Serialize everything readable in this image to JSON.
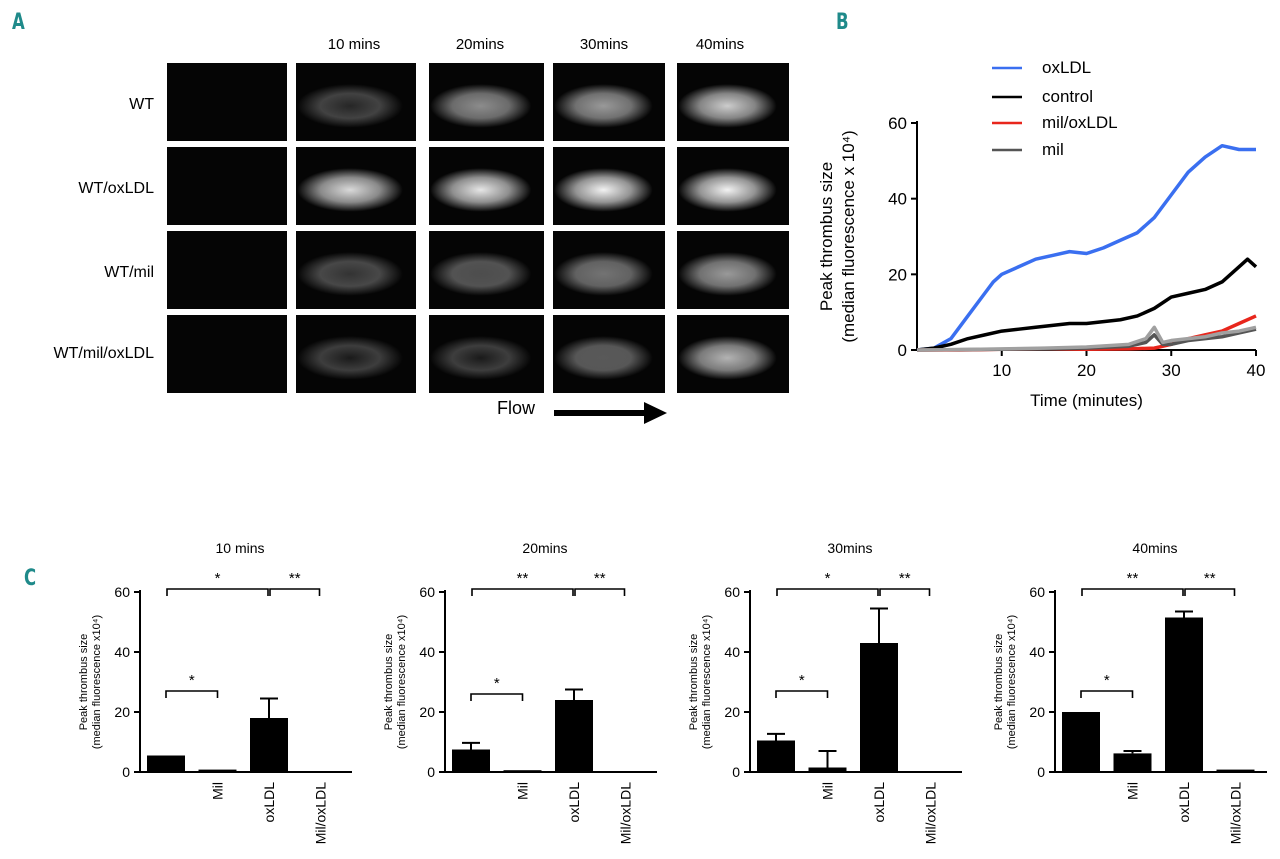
{
  "panels": {
    "a": "A",
    "b": "B",
    "c": "C"
  },
  "micrographs": {
    "time_headers": [
      "10 mins",
      "20mins",
      "30mins",
      "40mins"
    ],
    "rows": [
      "WT",
      "WT/oxLDL",
      "WT/mil",
      "WT/mil/oxLDL"
    ],
    "flow_label": "Flow",
    "brightness": [
      [
        0.0,
        0.15,
        0.55,
        0.6,
        0.8
      ],
      [
        0.0,
        0.85,
        0.9,
        0.95,
        0.95
      ],
      [
        0.0,
        0.2,
        0.3,
        0.45,
        0.6
      ],
      [
        0.0,
        0.1,
        0.1,
        0.35,
        0.7
      ]
    ]
  },
  "chart_data": [
    {
      "type": "line",
      "ylabel": "Peak thrombus size",
      "ylabel2": "(median fluorescence x 10⁴)",
      "xlabel": "Time (minutes)",
      "xlim": [
        0,
        40
      ],
      "ylim": [
        0,
        60
      ],
      "xticks": [
        "10",
        "20",
        "30",
        "40"
      ],
      "yticks": [
        "0",
        "20",
        "40",
        "60"
      ],
      "legend_position": "top",
      "series": [
        {
          "name": "oxLDL",
          "color": "#3a6ff0",
          "x": [
            0,
            2,
            4,
            6,
            8,
            9,
            10,
            12,
            14,
            16,
            18,
            20,
            22,
            24,
            26,
            28,
            30,
            32,
            34,
            36,
            38,
            40
          ],
          "y": [
            0,
            0.5,
            3,
            9,
            15,
            18,
            20,
            22,
            24,
            25,
            26,
            25.5,
            27,
            29,
            31,
            35,
            41,
            47,
            51,
            54,
            53,
            53
          ]
        },
        {
          "name": "control",
          "color": "#000000",
          "x": [
            0,
            2,
            4,
            6,
            8,
            10,
            12,
            14,
            16,
            18,
            20,
            22,
            24,
            26,
            28,
            30,
            32,
            34,
            36,
            38,
            39,
            40
          ],
          "y": [
            0,
            0.5,
            1.5,
            3,
            4,
            5,
            5.5,
            6,
            6.5,
            7,
            7,
            7.5,
            8,
            9,
            11,
            14,
            15,
            16,
            18,
            22,
            24,
            22
          ]
        },
        {
          "name": "mil/oxLDL",
          "color": "#e8261c",
          "x": [
            0,
            5,
            10,
            15,
            20,
            25,
            28,
            30,
            32,
            34,
            36,
            38,
            40
          ],
          "y": [
            0,
            0,
            0.2,
            0.3,
            0.2,
            0.3,
            0.5,
            1.5,
            3,
            4,
            5,
            7,
            9
          ]
        },
        {
          "name": "mil",
          "color": "#555555",
          "x": [
            0,
            5,
            10,
            15,
            20,
            25,
            27,
            28,
            29,
            30,
            32,
            34,
            36,
            38,
            40
          ],
          "y": [
            0,
            0.1,
            0.2,
            0.3,
            0.5,
            1,
            2,
            4,
            1.5,
            1.5,
            2.5,
            3,
            3.5,
            4.5,
            5.5
          ]
        },
        {
          "name": "",
          "color": "#a0a0a0",
          "x": [
            0,
            5,
            10,
            15,
            20,
            25,
            27,
            28,
            29,
            30,
            32,
            34,
            36,
            38,
            40
          ],
          "y": [
            0,
            0.1,
            0.3,
            0.5,
            0.8,
            1.5,
            3,
            6,
            2,
            2.5,
            3,
            3.5,
            4.5,
            5,
            6
          ]
        }
      ]
    },
    {
      "type": "bar",
      "title": "10 mins",
      "ylabel": "Peak thrombus size",
      "ylabel2": "(median fluorescence x10⁴)",
      "categories": [
        "",
        "Mil",
        "oxLDL",
        "Mil/oxLDL"
      ],
      "values": [
        5.5,
        0.8,
        18,
        0.3
      ],
      "errors": [
        0,
        0,
        6.5,
        0
      ],
      "ylim": [
        0,
        60
      ],
      "yticks": [
        "0",
        "20",
        "40",
        "60"
      ],
      "annotations": [
        {
          "from": 0,
          "to": 2,
          "level": 60,
          "text": "*"
        },
        {
          "from": 2,
          "to": 3,
          "level": 60,
          "text": "**"
        },
        {
          "from": 0,
          "to": 1,
          "level": 26,
          "text": "*"
        }
      ]
    },
    {
      "type": "bar",
      "title": "20mins",
      "ylabel": "Peak thrombus size",
      "ylabel2": "(median fluorescence x10⁴)",
      "categories": [
        "",
        "Mil",
        "oxLDL",
        "Mil/oxLDL"
      ],
      "values": [
        7.5,
        0.6,
        24,
        0.3
      ],
      "errors": [
        2.2,
        0,
        3.5,
        0
      ],
      "ylim": [
        0,
        60
      ],
      "yticks": [
        "0",
        "20",
        "40",
        "60"
      ],
      "annotations": [
        {
          "from": 0,
          "to": 2,
          "level": 60,
          "text": "**"
        },
        {
          "from": 2,
          "to": 3,
          "level": 60,
          "text": "**"
        },
        {
          "from": 0,
          "to": 1,
          "level": 25,
          "text": "*"
        }
      ]
    },
    {
      "type": "bar",
      "title": "30mins",
      "ylabel": "Peak thrombus size",
      "ylabel2": "(median fluorescence x10⁴)",
      "categories": [
        "",
        "Mil",
        "oxLDL",
        "Mil/oxLDL"
      ],
      "values": [
        10.5,
        1.5,
        43,
        0.3
      ],
      "errors": [
        2.2,
        5.5,
        11.5,
        0
      ],
      "ylim": [
        0,
        60
      ],
      "yticks": [
        "0",
        "20",
        "40",
        "60"
      ],
      "annotations": [
        {
          "from": 0,
          "to": 2,
          "level": 60,
          "text": "*"
        },
        {
          "from": 2,
          "to": 3,
          "level": 60,
          "text": "**"
        },
        {
          "from": 0,
          "to": 1,
          "level": 26,
          "text": "*"
        }
      ]
    },
    {
      "type": "bar",
      "title": "40mins",
      "ylabel": "Peak thrombus size",
      "ylabel2": "(median fluorescence x10⁴)",
      "categories": [
        "",
        "Mil",
        "oxLDL",
        "Mil/oxLDL"
      ],
      "values": [
        20,
        6.2,
        51.5,
        0.8
      ],
      "errors": [
        0,
        0.8,
        2,
        0
      ],
      "ylim": [
        0,
        60
      ],
      "yticks": [
        "0",
        "20",
        "40",
        "60"
      ],
      "annotations": [
        {
          "from": 0,
          "to": 2,
          "level": 60,
          "text": "**"
        },
        {
          "from": 2,
          "to": 3,
          "level": 60,
          "text": "**"
        },
        {
          "from": 0,
          "to": 1,
          "level": 26,
          "text": "*"
        }
      ]
    }
  ]
}
